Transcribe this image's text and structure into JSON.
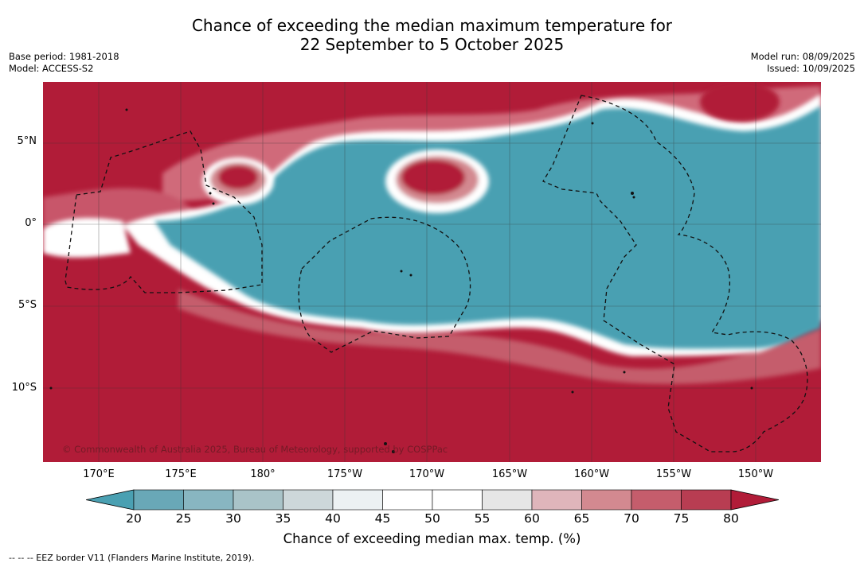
{
  "title": {
    "line1": "Chance of exceeding the median maximum temperature for",
    "line2": "22 September to 5 October 2025"
  },
  "meta": {
    "base_period": "Base period: 1981-2018",
    "model": "Model: ACCESS-S2",
    "model_run": "Model run: 08/09/2025",
    "issued": "Issued: 10/09/2025"
  },
  "map": {
    "lat_labels": [
      "5°N",
      "0°",
      "5°S",
      "10°S"
    ],
    "lon_labels": [
      "170°E",
      "175°E",
      "180°",
      "175°W",
      "170°W",
      "165°W",
      "160°W",
      "155°W",
      "150°W"
    ],
    "copyright": "© Commonwealth of Australia 2025, Bureau of Meteorology, supported by COSPPac",
    "colors": {
      "high": "#b11c38",
      "low": "#4aa0b2",
      "neutral": "#ffffff"
    }
  },
  "colorbar": {
    "ticks": [
      "20",
      "25",
      "30",
      "35",
      "40",
      "45",
      "50",
      "55",
      "60",
      "65",
      "70",
      "75",
      "80"
    ],
    "colors": [
      "#4aa0b2",
      "#69a8b7",
      "#88b6c1",
      "#a9c3c8",
      "#cdd7da",
      "#ecf1f3",
      "#ffffff",
      "#ffffff",
      "#e6e6e6",
      "#dfb5bb",
      "#d38990",
      "#c55d6c",
      "#b83d52",
      "#b11c38"
    ],
    "label": "Chance of exceeding median max. temp. (%)"
  },
  "footnote": "--  --  -- EEZ border V11 (Flanders Marine Institute, 2019)."
}
